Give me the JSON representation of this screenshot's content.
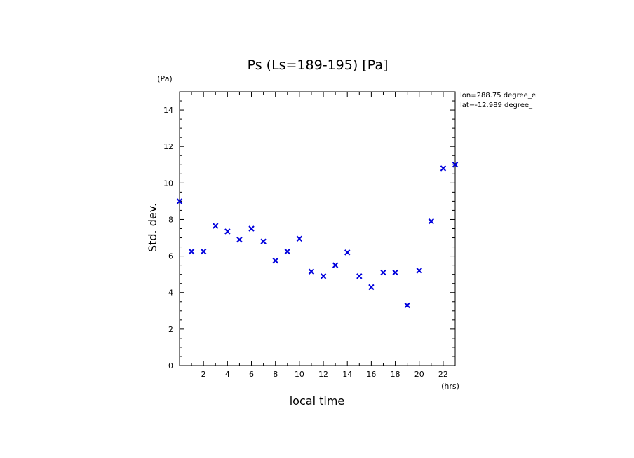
{
  "chart_data": {
    "type": "scatter",
    "title": "Ps (Ls=189-195) [Pa]",
    "xlabel": "local time",
    "ylabel": "Std. dev.",
    "x_unit": "(hrs)",
    "y_unit": "(Pa)",
    "xlim": [
      0,
      23
    ],
    "ylim": [
      0,
      15
    ],
    "x_ticks": [
      2,
      4,
      6,
      8,
      10,
      12,
      14,
      16,
      18,
      20,
      22
    ],
    "y_ticks": [
      0,
      2,
      4,
      6,
      8,
      10,
      12,
      14
    ],
    "grid": false,
    "annotations": [
      "lon=288.75 degree_e",
      "lat=-12.989 degree_"
    ],
    "marker": "x",
    "marker_color": "#0000dd",
    "x": [
      0,
      1,
      2,
      3,
      4,
      5,
      6,
      7,
      8,
      9,
      10,
      11,
      12,
      13,
      14,
      15,
      16,
      17,
      18,
      19,
      20,
      21,
      22,
      23
    ],
    "y": [
      9.0,
      6.25,
      6.25,
      7.65,
      7.35,
      6.9,
      7.5,
      6.8,
      5.75,
      6.25,
      6.95,
      5.15,
      4.9,
      5.5,
      6.2,
      4.9,
      4.3,
      5.1,
      5.1,
      3.3,
      5.2,
      7.9,
      10.8,
      11.0
    ]
  }
}
